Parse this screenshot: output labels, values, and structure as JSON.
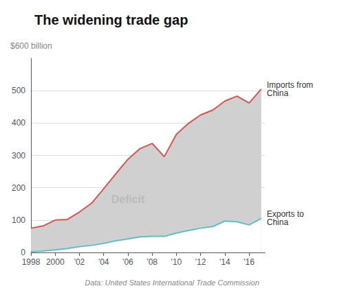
{
  "chart_data": {
    "type": "line",
    "title": "The widening trade gap",
    "y_label": "$600 billion",
    "source": "Data: United States International Trade Commission",
    "annotations": [
      {
        "text": "Deficit",
        "x": 2006,
        "y": 165
      }
    ],
    "x": [
      1998,
      1999,
      2000,
      2001,
      2002,
      2003,
      2004,
      2005,
      2006,
      2007,
      2008,
      2009,
      2010,
      2011,
      2012,
      2013,
      2014,
      2015,
      2016,
      2017
    ],
    "series": [
      {
        "name": "Imports from\nChina",
        "color": "#d9534f",
        "values": [
          75,
          82,
          100,
          102,
          125,
          152,
          197,
          243,
          288,
          321,
          337,
          296,
          365,
          399,
          425,
          440,
          468,
          483,
          462,
          505
        ]
      },
      {
        "name": "Exports to\nChina",
        "color": "#5bc0c8",
        "values": [
          2,
          4,
          8,
          12,
          18,
          22,
          28,
          36,
          42,
          48,
          50,
          50,
          60,
          68,
          75,
          80,
          97,
          95,
          85,
          105
        ]
      }
    ],
    "xlim": [
      1998,
      2017.3
    ],
    "xticks": [
      1998,
      2000,
      {
        "value": 2002,
        "label": "'02"
      },
      {
        "value": 2004,
        "label": "'04"
      },
      {
        "value": 2006,
        "label": "'06"
      },
      {
        "value": 2008,
        "label": "'08"
      },
      {
        "value": 2010,
        "label": "'10"
      },
      {
        "value": 2012,
        "label": "'12"
      },
      {
        "value": 2014,
        "label": "'14"
      },
      {
        "value": 2016,
        "label": "'16"
      }
    ],
    "ylim": [
      0,
      600
    ],
    "yticks": [
      0,
      100,
      200,
      300,
      400,
      500
    ],
    "grid": true
  }
}
